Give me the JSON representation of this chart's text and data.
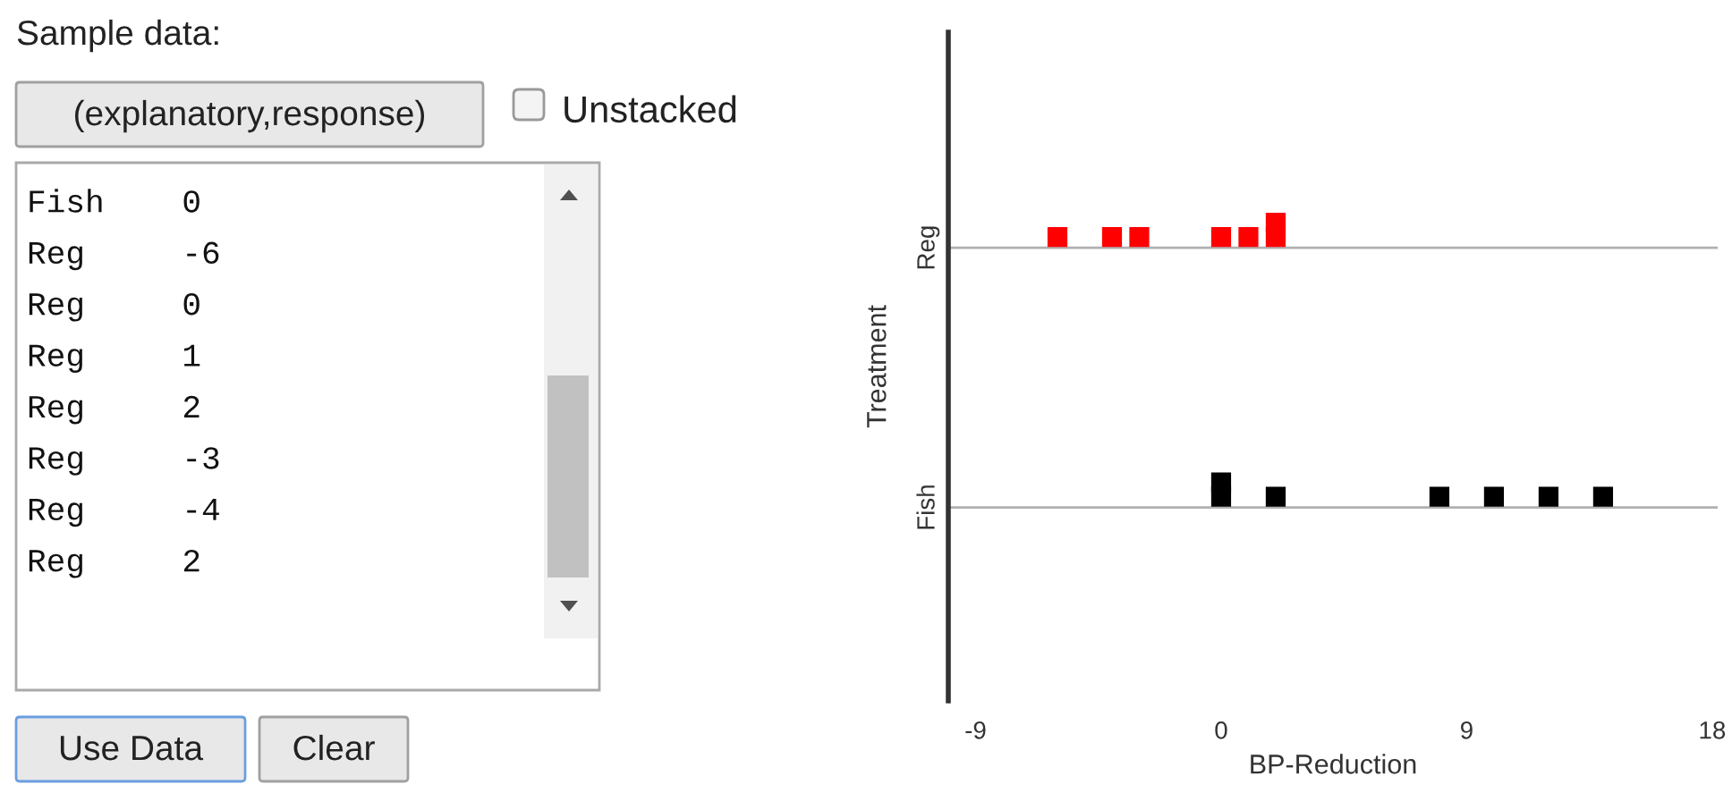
{
  "chart_data": [
    {
      "type": "other",
      "annotations": [
        "Sample data:",
        "(explanatory,response)",
        "Unstacked",
        "Fish    0",
        "Reg     -6",
        "Reg     0",
        "Reg     1",
        "Reg     2",
        "Reg     -3",
        "Reg     -4",
        "Reg     2",
        "Use Data",
        "Clear"
      ]
    },
    {
      "type": "scatter",
      "orientation": "horizontal",
      "categories": [
        "Reg",
        "Fish"
      ],
      "xlabel": "BP-Reduction",
      "ylabel": "Treatment",
      "xlim": [
        -10,
        18.2
      ],
      "xticks": [
        -9,
        0,
        9,
        18
      ],
      "grid": "y",
      "marker": "square",
      "series": [
        {
          "color": "#ff0000",
          "x": [
            "Reg",
            "Reg",
            "Reg",
            "Reg",
            "Reg",
            "Reg",
            "Reg"
          ],
          "values": [
            -6,
            -4,
            -3,
            0,
            1,
            2,
            2
          ]
        },
        {
          "color": "#000000",
          "x": [
            "Fish",
            "Fish",
            "Fish",
            "Fish",
            "Fish",
            "Fish",
            "Fish"
          ],
          "values": [
            0,
            0,
            2,
            8,
            10,
            12,
            14
          ]
        }
      ]
    }
  ]
}
